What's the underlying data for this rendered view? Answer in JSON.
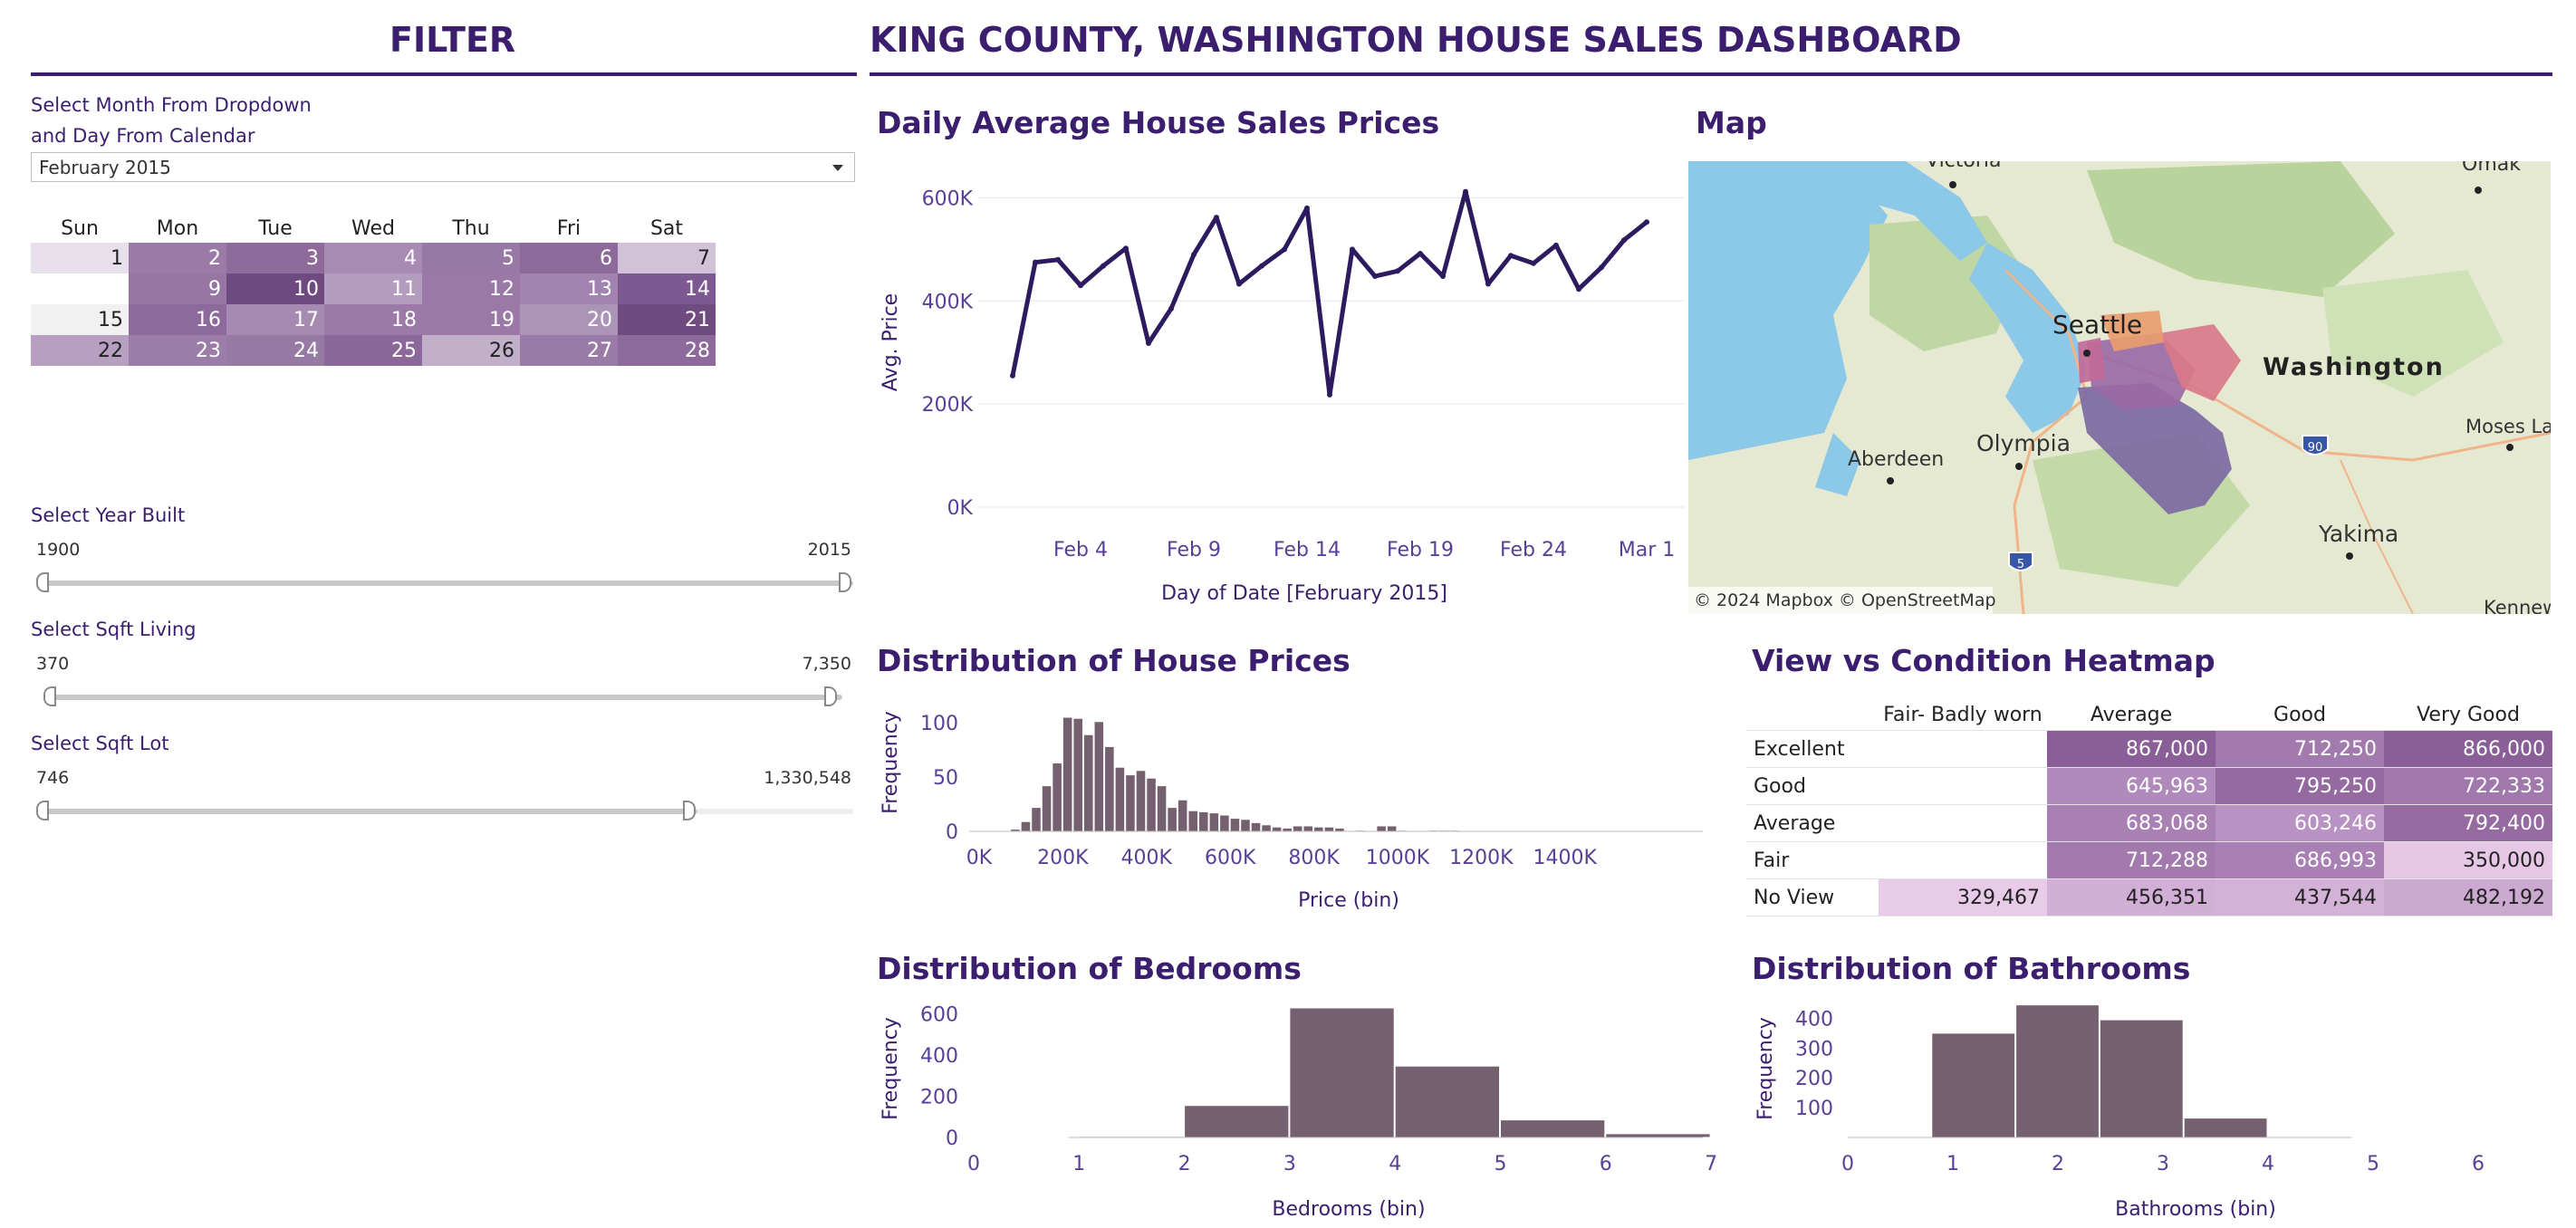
{
  "header": {
    "filter_title": "FILTER",
    "dashboard_title": "KING COUNTY, WASHINGTON HOUSE SALES DASHBOARD"
  },
  "filters": {
    "month_label_line1": "Select Month From Dropdown",
    "month_label_line2": "and Day From Calendar",
    "month_value": "February 2015",
    "calendar": {
      "weekdays": [
        "Sun",
        "Mon",
        "Tue",
        "Wed",
        "Thu",
        "Fri",
        "Sat"
      ],
      "weeks": [
        [
          {
            "d": "1",
            "c": "#e7e0ea"
          },
          {
            "d": "2",
            "c": "#9b7aa7"
          },
          {
            "d": "3",
            "c": "#8f6b9c"
          },
          {
            "d": "4",
            "c": "#a88bb3"
          },
          {
            "d": "5",
            "c": "#9878a5"
          },
          {
            "d": "6",
            "c": "#8e6a9b"
          },
          {
            "d": "7",
            "c": "#d2c2d8"
          }
        ],
        [
          null,
          {
            "d": "9",
            "c": "#9776a4"
          },
          {
            "d": "10",
            "c": "#6e4a80"
          },
          {
            "d": "11",
            "c": "#b39cbd"
          },
          {
            "d": "12",
            "c": "#9a79a7"
          },
          {
            "d": "13",
            "c": "#a282ae"
          },
          {
            "d": "14",
            "c": "#7e5890"
          }
        ],
        [
          {
            "d": "15",
            "c": "#f1f1f1"
          },
          {
            "d": "16",
            "c": "#8d6a9b"
          },
          {
            "d": "17",
            "c": "#a78ab2"
          },
          {
            "d": "18",
            "c": "#9b7aa8"
          },
          {
            "d": "19",
            "c": "#9a79a7"
          },
          {
            "d": "20",
            "c": "#ad93b8"
          },
          {
            "d": "21",
            "c": "#6f4b80"
          }
        ],
        [
          {
            "d": "22",
            "c": "#b69fc0"
          },
          {
            "d": "23",
            "c": "#9c7ca9"
          },
          {
            "d": "24",
            "c": "#977aa4"
          },
          {
            "d": "25",
            "c": "#8b6899"
          },
          {
            "d": "26",
            "c": "#c2b0cb"
          },
          {
            "d": "27",
            "c": "#9a7aa7"
          },
          {
            "d": "28",
            "c": "#8d6a9b"
          }
        ]
      ]
    },
    "year_built": {
      "label": "Select Year Built",
      "min": "1900",
      "max": "2015",
      "low_frac": 0.0,
      "high_frac": 1.0
    },
    "sqft_living": {
      "label": "Select Sqft Living",
      "min": "370",
      "max": "7,350",
      "low_frac": 0.0,
      "high_frac": 1.0
    },
    "sqft_lot": {
      "label": "Select Sqft Lot",
      "min": "746",
      "max": "1,330,548",
      "low_frac": 0.0,
      "high_frac": 0.81
    }
  },
  "line_chart": {
    "title": "Daily Average House Sales Prices",
    "ylabel": "Avg. Price",
    "xlabel": "Day of Date [February 2015]",
    "yticks": [
      "0K",
      "200K",
      "400K",
      "600K"
    ],
    "xticks": [
      "Feb 4",
      "Feb 9",
      "Feb 14",
      "Feb 19",
      "Feb 24",
      "Mar 1"
    ]
  },
  "map": {
    "title": "Map",
    "labels": {
      "victoria": "Victoria",
      "omak": "Omak",
      "seattle": "Seattle",
      "washington": "Washington",
      "aberdeen": "Aberdeen",
      "olympia": "Olympia",
      "moses_lake": "Moses Lake",
      "yakima": "Yakima",
      "kennewick": "Kennewick",
      "i90": "90",
      "i5": "5"
    },
    "attribution": "© 2024 Mapbox  © OpenStreetMap"
  },
  "price_hist": {
    "title": "Distribution of House Prices",
    "ylabel": "Frequency",
    "xlabel": "Price (bin)",
    "yticks": [
      "0",
      "50",
      "100"
    ],
    "xticks": [
      "0K",
      "200K",
      "400K",
      "600K",
      "800K",
      "1000K",
      "1200K",
      "1400K"
    ]
  },
  "heatmap": {
    "title": "View vs Condition Heatmap",
    "columns": [
      "Fair- Badly worn",
      "Average",
      "Good",
      "Very Good"
    ],
    "rows": [
      {
        "label": "Excellent",
        "cells": [
          {
            "v": "",
            "c": "#ffffff"
          },
          {
            "v": "867,000",
            "c": "#8a5e96"
          },
          {
            "v": "712,250",
            "c": "#a27aad"
          },
          {
            "v": "866,000",
            "c": "#8a5e96"
          }
        ]
      },
      {
        "label": "Good",
        "cells": [
          {
            "v": "",
            "c": "#ffffff"
          },
          {
            "v": "645,963",
            "c": "#b08abb"
          },
          {
            "v": "795,250",
            "c": "#946aa1"
          },
          {
            "v": "722,333",
            "c": "#a078ab"
          }
        ]
      },
      {
        "label": "Average",
        "cells": [
          {
            "v": "",
            "c": "#ffffff"
          },
          {
            "v": "683,068",
            "c": "#a880b3"
          },
          {
            "v": "603,246",
            "c": "#b892c2"
          },
          {
            "v": "792,400",
            "c": "#956ba2"
          }
        ]
      },
      {
        "label": "Fair",
        "cells": [
          {
            "v": "",
            "c": "#ffffff"
          },
          {
            "v": "712,288",
            "c": "#a27aad"
          },
          {
            "v": "686,993",
            "c": "#a880b3"
          },
          {
            "v": "350,000",
            "c": "#e6c8e6"
          }
        ]
      },
      {
        "label": "No View",
        "cells": [
          {
            "v": "329,467",
            "c": "#e8cbe8"
          },
          {
            "v": "456,351",
            "c": "#d2afd6"
          },
          {
            "v": "437,544",
            "c": "#d4b2d8"
          },
          {
            "v": "482,192",
            "c": "#cca9d1"
          }
        ]
      }
    ]
  },
  "bedrooms_hist": {
    "title": "Distribution of Bedrooms",
    "ylabel": "Frequency",
    "xlabel": "Bedrooms (bin)",
    "yticks": [
      "0",
      "200",
      "400",
      "600"
    ],
    "xticks": [
      "0",
      "1",
      "2",
      "3",
      "4",
      "5",
      "6",
      "7"
    ]
  },
  "bathrooms_hist": {
    "title": "Distribution of Bathrooms",
    "ylabel": "Frequency",
    "xlabel": "Bathrooms (bin)",
    "yticks": [
      "100",
      "200",
      "300",
      "400"
    ],
    "xticks": [
      "0",
      "1",
      "2",
      "3",
      "4",
      "5",
      "6"
    ]
  },
  "colors": {
    "accent": "#3b1f6e",
    "bar": "#756070",
    "line": "#2e1a5e"
  },
  "chart_data": [
    {
      "type": "line",
      "title": "Daily Average House Sales Prices",
      "xlabel": "Day of Date [February 2015]",
      "ylabel": "Avg. Price",
      "ylim": [
        0,
        650000
      ],
      "x": [
        "Feb 1",
        "Feb 2",
        "Feb 3",
        "Feb 4",
        "Feb 5",
        "Feb 6",
        "Feb 7",
        "Feb 8",
        "Feb 9",
        "Feb 10",
        "Feb 11",
        "Feb 12",
        "Feb 13",
        "Feb 14",
        "Feb 15",
        "Feb 16",
        "Feb 17",
        "Feb 18",
        "Feb 19",
        "Feb 20",
        "Feb 21",
        "Feb 22",
        "Feb 23",
        "Feb 24",
        "Feb 25",
        "Feb 26",
        "Feb 27",
        "Feb 28",
        "Mar 1"
      ],
      "values": [
        255000,
        475000,
        480000,
        430000,
        468000,
        502000,
        318000,
        385000,
        490000,
        562000,
        433000,
        468000,
        500000,
        580000,
        218000,
        500000,
        448000,
        458000,
        492000,
        448000,
        612000,
        433000,
        488000,
        473000,
        508000,
        423000,
        465000,
        518000,
        553000
      ]
    },
    {
      "type": "bar",
      "title": "Distribution of House Prices",
      "xlabel": "Price (bin)",
      "ylabel": "Frequency",
      "x_start": 75000,
      "bin_width": 25000,
      "xlim": [
        0,
        1450000
      ],
      "ylim": [
        0,
        110
      ],
      "values": [
        2,
        9,
        22,
        42,
        63,
        105,
        104,
        89,
        101,
        78,
        59,
        52,
        56,
        49,
        42,
        22,
        29,
        19,
        18,
        17,
        15,
        12,
        11,
        8,
        6,
        4,
        3,
        5,
        5,
        4,
        4,
        3,
        0,
        1,
        0,
        5,
        5,
        1,
        0,
        0,
        1,
        1,
        1
      ]
    },
    {
      "type": "bar",
      "title": "Distribution of Bedrooms",
      "xlabel": "Bedrooms (bin)",
      "ylabel": "Frequency",
      "xlim": [
        0,
        7
      ],
      "ylim": [
        0,
        650
      ],
      "categories": [
        "1",
        "2",
        "3",
        "4",
        "5",
        "6"
      ],
      "bin_edges": [
        1,
        2,
        3,
        4,
        5,
        6,
        7
      ],
      "values": [
        5,
        155,
        628,
        346,
        85,
        18
      ]
    },
    {
      "type": "bar",
      "title": "Distribution of Bathrooms",
      "xlabel": "Bathrooms (bin)",
      "ylabel": "Frequency",
      "xlim": [
        0,
        6
      ],
      "ylim": [
        0,
        450
      ],
      "categories": [
        "1",
        "1.8",
        "2.6",
        "3.4",
        "4.2"
      ],
      "bin_edges": [
        0.8,
        1.6,
        2.4,
        3.2,
        4.0,
        4.8
      ],
      "values": [
        350,
        445,
        395,
        65,
        1
      ]
    },
    {
      "type": "heatmap",
      "title": "View vs Condition Heatmap",
      "columns": [
        "Fair- Badly worn",
        "Average",
        "Good",
        "Very Good"
      ],
      "rows": [
        "Excellent",
        "Good",
        "Average",
        "Fair",
        "No View"
      ],
      "values": [
        [
          null,
          867000,
          712250,
          866000
        ],
        [
          null,
          645963,
          795250,
          722333
        ],
        [
          null,
          683068,
          603246,
          792400
        ],
        [
          null,
          712288,
          686993,
          350000
        ],
        [
          329467,
          456351,
          437544,
          482192
        ]
      ]
    }
  ]
}
